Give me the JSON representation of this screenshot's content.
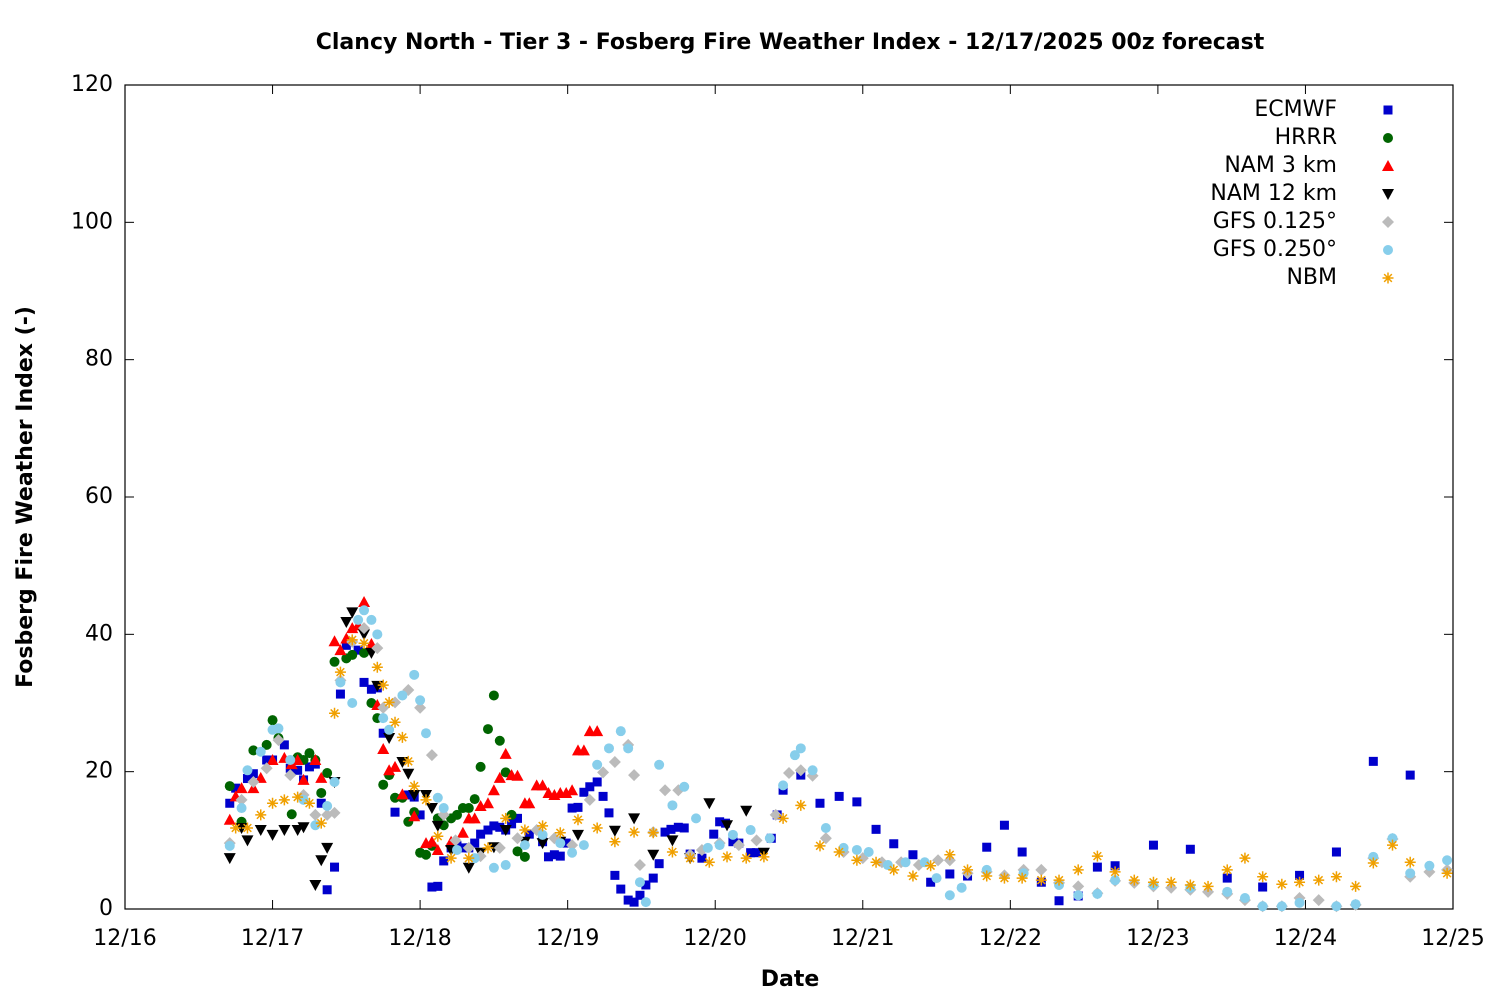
{
  "chart_data": {
    "type": "scatter",
    "title": "Clancy North - Tier 3 - Fosberg Fire Weather Index - 12/17/2025 00z forecast",
    "x_label": "Date",
    "y_label": "Fosberg Fire Weather Index (-)",
    "xlim": [
      16,
      25
    ],
    "xticks": [
      {
        "value": 16,
        "label": "12/16"
      },
      {
        "value": 17,
        "label": "12/17"
      },
      {
        "value": 18,
        "label": "12/18"
      },
      {
        "value": 19,
        "label": "12/19"
      },
      {
        "value": 20,
        "label": "12/20"
      },
      {
        "value": 21,
        "label": "12/21"
      },
      {
        "value": 22,
        "label": "12/22"
      },
      {
        "value": 23,
        "label": "12/23"
      },
      {
        "value": 24,
        "label": "12/24"
      },
      {
        "value": 25,
        "label": "12/25"
      }
    ],
    "ylim": [
      0,
      120
    ],
    "yticks": [
      0,
      20,
      40,
      60,
      80,
      100,
      120
    ],
    "legend": "top-right",
    "series": [
      {
        "name": "ECMWF",
        "color": "#0000cc",
        "marker": "square",
        "x": [
          16.71,
          16.75,
          16.83,
          16.87,
          16.96,
          17.0,
          17.08,
          17.12,
          17.17,
          17.21,
          17.25,
          17.29,
          17.33,
          17.37,
          17.42,
          17.46,
          17.5,
          17.58,
          17.62,
          17.67,
          17.71,
          17.75,
          17.83,
          17.92,
          17.96,
          18.0,
          18.08,
          18.12,
          18.16,
          18.21,
          18.25,
          18.29,
          18.33,
          18.37,
          18.41,
          18.46,
          18.5,
          18.54,
          18.58,
          18.62,
          18.66,
          18.74,
          18.83,
          18.87,
          18.91,
          18.95,
          18.99,
          19.03,
          19.07,
          19.11,
          19.15,
          19.2,
          19.24,
          19.28,
          19.32,
          19.36,
          19.41,
          19.45,
          19.49,
          19.53,
          19.58,
          19.62,
          19.66,
          19.7,
          19.75,
          19.79,
          19.83,
          19.91,
          19.99,
          20.03,
          20.07,
          20.12,
          20.16,
          20.24,
          20.28,
          20.38,
          20.42,
          20.46,
          20.58,
          20.71,
          20.84,
          20.96,
          21.09,
          21.21,
          21.34,
          21.46,
          21.59,
          21.71,
          21.84,
          21.96,
          22.08,
          22.21,
          22.33,
          22.46,
          22.59,
          22.71,
          22.97,
          23.22,
          23.47,
          23.71,
          23.96,
          24.21,
          24.46,
          24.71
        ],
        "values": [
          15.4,
          17.6,
          19,
          19.7,
          21.7,
          21.7,
          23.9,
          20.5,
          20.2,
          18.8,
          20.7,
          21.1,
          15.4,
          2.8,
          6.1,
          31.3,
          38.4,
          37.7,
          33,
          32,
          32.2,
          25.6,
          14.1,
          16.6,
          16.3,
          13.7,
          3.2,
          3.3,
          7,
          8.9,
          9.2,
          8.9,
          8.9,
          9.6,
          10.9,
          11.5,
          12.1,
          11.9,
          11.5,
          12.4,
          13.2,
          10.9,
          9.8,
          7.6,
          7.9,
          7.7,
          9.6,
          14.7,
          14.8,
          17,
          17.8,
          18.5,
          16.4,
          14,
          4.9,
          2.9,
          1.3,
          1,
          2,
          3.5,
          4.5,
          6.6,
          11.2,
          11.6,
          11.9,
          11.8,
          8,
          7.4,
          10.9,
          12.7,
          12.5,
          9.8,
          9.6,
          8.2,
          8.2,
          10.3,
          13.7,
          17.3,
          19.5,
          15.4,
          16.4,
          15.6,
          11.6,
          9.5,
          7.9,
          3.9,
          5.1,
          4.8,
          9,
          12.2,
          8.3,
          3.9,
          1.2,
          1.9,
          6.1,
          6.3,
          9.3,
          8.7,
          4.5,
          3.2,
          4.9,
          8.3,
          21.5,
          19.5
        ]
      },
      {
        "name": "HRRR",
        "color": "#006400",
        "marker": "circle",
        "x": [
          16.71,
          16.79,
          16.87,
          16.96,
          17.0,
          17.04,
          17.13,
          17.17,
          17.21,
          17.25,
          17.29,
          17.33,
          17.37,
          17.42,
          17.5,
          17.54,
          17.62,
          17.67,
          17.71,
          17.75,
          17.79,
          17.83,
          17.88,
          17.92,
          17.96,
          18.0,
          18.04,
          18.08,
          18.12,
          18.16,
          18.21,
          18.25,
          18.29,
          18.33,
          18.37,
          18.41,
          18.46,
          18.5,
          18.54,
          18.58,
          18.62,
          18.66,
          18.71
        ],
        "values": [
          17.9,
          12.7,
          23.1,
          23.9,
          27.5,
          24.9,
          13.8,
          22.1,
          21.7,
          22.7,
          21.7,
          16.9,
          19.8,
          36,
          36.5,
          37,
          37.3,
          30,
          27.8,
          18.1,
          19.5,
          16.2,
          16.2,
          12.7,
          14.1,
          8.2,
          7.9,
          9.2,
          13.2,
          12.2,
          13.2,
          13.7,
          14.7,
          14.7,
          16,
          20.7,
          26.2,
          31.1,
          24.5,
          19.9,
          13.7,
          8.4,
          7.6
        ]
      },
      {
        "name": "NAM 3 km",
        "color": "#ff0000",
        "marker": "triangle-up",
        "x": [
          16.71,
          16.75,
          16.79,
          16.87,
          16.92,
          17.0,
          17.08,
          17.13,
          17.17,
          17.21,
          17.29,
          17.33,
          17.42,
          17.46,
          17.5,
          17.54,
          17.58,
          17.62,
          17.67,
          17.71,
          17.75,
          17.79,
          17.83,
          17.88,
          17.96,
          18.04,
          18.08,
          18.12,
          18.21,
          18.29,
          18.33,
          18.37,
          18.41,
          18.46,
          18.5,
          18.54,
          18.58,
          18.62,
          18.66,
          18.71,
          18.74,
          18.79,
          18.83,
          18.87,
          18.91,
          18.95,
          18.99,
          19.03,
          19.07,
          19.11,
          19.15,
          19.2
        ],
        "values": [
          13,
          16.4,
          17.6,
          17.6,
          19.1,
          21.7,
          22,
          21.1,
          21.7,
          18.8,
          21.7,
          19.1,
          39,
          37.7,
          39.4,
          40.9,
          41.3,
          44.7,
          38.6,
          29.7,
          23.3,
          20.2,
          20.7,
          16.7,
          13.5,
          9.6,
          9.8,
          8.6,
          9.8,
          11.1,
          13.2,
          13.2,
          15,
          15.4,
          17.3,
          19.1,
          22.6,
          19.5,
          19.4,
          15.4,
          15.4,
          18,
          18,
          16.9,
          16.6,
          16.9,
          16.9,
          17.3,
          23.1,
          23.1,
          25.9,
          25.9
        ]
      },
      {
        "name": "NAM 12 km",
        "color": "#000000",
        "marker": "triangle-down",
        "x": [
          16.71,
          16.79,
          16.83,
          16.92,
          17.0,
          17.08,
          17.17,
          17.21,
          17.29,
          17.33,
          17.37,
          17.42,
          17.5,
          17.54,
          17.62,
          17.67,
          17.71,
          17.79,
          17.88,
          17.92,
          17.96,
          18.04,
          18.08,
          18.12,
          18.21,
          18.33,
          18.41,
          18.5,
          18.58,
          18.71,
          18.83,
          18.95,
          19.07,
          19.32,
          19.45,
          19.58,
          19.71,
          19.83,
          19.96,
          20.08,
          20.21,
          20.33
        ],
        "values": [
          7.4,
          11.8,
          10,
          11.5,
          10.8,
          11.5,
          11.5,
          11.9,
          3.5,
          7.1,
          8.9,
          18.5,
          41.8,
          43.2,
          40,
          37.3,
          32.5,
          24.9,
          21.4,
          19.7,
          16.6,
          16.6,
          14.7,
          12.1,
          8.6,
          6,
          8.2,
          9,
          11.5,
          9.8,
          9.6,
          9.8,
          10.8,
          11.4,
          13.2,
          7.9,
          10,
          7.4,
          15.4,
          12.2,
          14.3,
          8.2
        ]
      },
      {
        "name": "GFS 0.125°",
        "color": "#bbbbbb",
        "marker": "diamond",
        "x": [
          16.71,
          16.79,
          16.87,
          16.96,
          17.04,
          17.12,
          17.21,
          17.29,
          17.37,
          17.42,
          17.46,
          17.54,
          17.62,
          17.71,
          17.75,
          17.83,
          17.92,
          18.0,
          18.08,
          18.16,
          18.24,
          18.33,
          18.41,
          18.54,
          18.66,
          18.79,
          18.91,
          19.03,
          19.15,
          19.24,
          19.32,
          19.41,
          19.45,
          19.49,
          19.58,
          19.66,
          19.75,
          19.83,
          19.91,
          20.03,
          20.16,
          20.28,
          20.41,
          20.5,
          20.58,
          20.66,
          20.75,
          20.87,
          21.0,
          21.13,
          21.26,
          21.38,
          21.51,
          21.59,
          21.71,
          21.84,
          21.96,
          22.09,
          22.21,
          22.33,
          22.46,
          22.59,
          22.71,
          22.84,
          22.97,
          23.09,
          23.22,
          23.34,
          23.47,
          23.59,
          23.71,
          23.84,
          23.96,
          24.09,
          24.21,
          24.34,
          24.46,
          24.59,
          24.71,
          24.84,
          24.96
        ],
        "values": [
          9.6,
          15.9,
          18.5,
          20.5,
          24.6,
          19.5,
          16.6,
          13.7,
          13.7,
          14,
          33.3,
          38.9,
          40.9,
          38,
          29.3,
          30.1,
          31.9,
          29.3,
          22.4,
          13.7,
          10,
          8.9,
          7.7,
          8.9,
          10.3,
          11.5,
          10.3,
          9.3,
          15.9,
          19.9,
          21.4,
          23.9,
          19.5,
          6.4,
          11.2,
          17.3,
          17.3,
          7.9,
          8.6,
          9.6,
          9.3,
          10,
          13.7,
          19.8,
          20.2,
          19.4,
          10.3,
          8.3,
          7.4,
          6.8,
          6.8,
          6.4,
          7.1,
          7.1,
          5.2,
          5.4,
          4.9,
          5.7,
          5.7,
          3.8,
          3.3,
          2.3,
          4.1,
          3.8,
          3.3,
          3.1,
          2.8,
          2.5,
          2.2,
          1.3,
          0.4,
          0.4,
          1.6,
          1.3,
          0.4,
          0.6,
          7.4,
          10.2,
          4.7,
          5.4,
          5.7
        ]
      },
      {
        "name": "GFS 0.250°",
        "color": "#87ceeb",
        "marker": "circle",
        "x": [
          16.71,
          16.79,
          16.83,
          16.92,
          17.0,
          17.04,
          17.12,
          17.21,
          17.29,
          17.37,
          17.42,
          17.46,
          17.54,
          17.58,
          17.62,
          17.67,
          17.71,
          17.75,
          17.79,
          17.88,
          17.96,
          18.0,
          18.04,
          18.12,
          18.16,
          18.25,
          18.37,
          18.5,
          18.58,
          18.71,
          18.83,
          18.95,
          19.03,
          19.11,
          19.2,
          19.28,
          19.36,
          19.41,
          19.49,
          19.53,
          19.62,
          19.71,
          19.79,
          19.87,
          19.95,
          20.03,
          20.12,
          20.24,
          20.37,
          20.46,
          20.54,
          20.58,
          20.66,
          20.75,
          20.87,
          20.96,
          21.04,
          21.17,
          21.29,
          21.42,
          21.5,
          21.59,
          21.67,
          21.84,
          22.09,
          22.33,
          22.46,
          22.59,
          22.71,
          22.97,
          23.22,
          23.47,
          23.59,
          23.71,
          23.84,
          23.96,
          24.21,
          24.34,
          24.46,
          24.59,
          24.71,
          24.84,
          24.96
        ],
        "values": [
          9.2,
          14.7,
          20.2,
          22.9,
          26.1,
          26.3,
          21.7,
          15.9,
          12.2,
          15,
          18.5,
          33,
          30,
          42.1,
          43.5,
          42.1,
          40,
          27.8,
          26.1,
          31.1,
          34.1,
          30.4,
          25.6,
          16.2,
          14.7,
          8.6,
          7.4,
          6,
          6.4,
          9.3,
          10.8,
          9.6,
          8.2,
          9.3,
          21,
          23.4,
          25.9,
          23.4,
          3.9,
          1,
          21,
          15.1,
          17.8,
          13.2,
          8.9,
          9.3,
          10.8,
          11.5,
          10.3,
          18,
          22.4,
          23.4,
          20.2,
          11.8,
          8.9,
          8.6,
          8.3,
          6.4,
          6.8,
          6.8,
          4.5,
          2,
          3.1,
          5.7,
          5.2,
          3.5,
          2,
          2.2,
          4.2,
          3.5,
          3.1,
          2.5,
          1.6,
          0.4,
          0.4,
          0.9,
          0.4,
          0.7,
          7.6,
          10.3,
          5.2,
          6.3,
          7.1
        ]
      },
      {
        "name": "NBM",
        "color": "#f0a000",
        "marker": "asterisk",
        "x": [
          16.75,
          16.83,
          16.92,
          17.0,
          17.08,
          17.17,
          17.25,
          17.33,
          17.42,
          17.46,
          17.54,
          17.62,
          17.71,
          17.75,
          17.79,
          17.83,
          17.88,
          17.92,
          17.96,
          18.04,
          18.12,
          18.21,
          18.33,
          18.46,
          18.58,
          18.71,
          18.83,
          18.95,
          19.07,
          19.2,
          19.32,
          19.45,
          19.58,
          19.71,
          19.83,
          19.96,
          20.08,
          20.21,
          20.33,
          20.46,
          20.58,
          20.71,
          20.84,
          20.96,
          21.09,
          21.21,
          21.34,
          21.46,
          21.59,
          21.71,
          21.84,
          21.96,
          22.08,
          22.21,
          22.33,
          22.46,
          22.59,
          22.71,
          22.84,
          22.97,
          23.09,
          23.22,
          23.34,
          23.47,
          23.59,
          23.71,
          23.84,
          23.96,
          24.09,
          24.21,
          24.34,
          24.46,
          24.59,
          24.71,
          24.96
        ],
        "values": [
          11.8,
          11.8,
          13.7,
          15.4,
          15.9,
          16.3,
          15.4,
          12.5,
          28.5,
          34.5,
          39.2,
          38.7,
          35.2,
          32.6,
          30.1,
          27.2,
          25,
          21.5,
          17.9,
          15.9,
          10.6,
          7.4,
          7.4,
          8.9,
          13.2,
          11.5,
          12.1,
          11.1,
          13,
          11.8,
          9.8,
          11.2,
          11.1,
          8.3,
          7.4,
          6.8,
          7.6,
          7.4,
          7.6,
          13.2,
          15.1,
          9.2,
          8.3,
          7.1,
          6.8,
          5.7,
          4.8,
          6.3,
          7.9,
          5.7,
          4.8,
          4.5,
          4.5,
          4.2,
          4.2,
          5.7,
          7.7,
          5.4,
          4.2,
          3.9,
          3.9,
          3.5,
          3.3,
          5.7,
          7.4,
          4.7,
          3.6,
          3.9,
          4.2,
          4.7,
          3.3,
          6.7,
          9.3,
          6.8,
          5.2
        ]
      }
    ]
  }
}
